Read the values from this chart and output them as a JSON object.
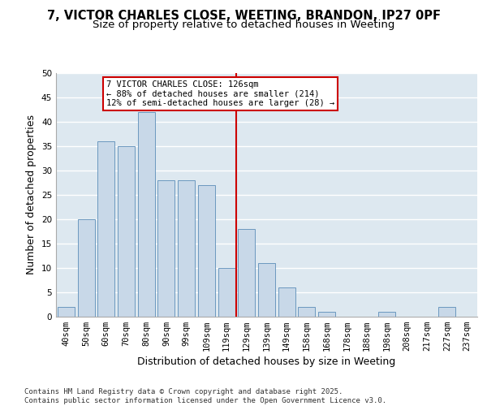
{
  "title_line1": "7, VICTOR CHARLES CLOSE, WEETING, BRANDON, IP27 0PF",
  "title_line2": "Size of property relative to detached houses in Weeting",
  "xlabel": "Distribution of detached houses by size in Weeting",
  "ylabel": "Number of detached properties",
  "categories": [
    "40sqm",
    "50sqm",
    "60sqm",
    "70sqm",
    "80sqm",
    "90sqm",
    "99sqm",
    "109sqm",
    "119sqm",
    "129sqm",
    "139sqm",
    "149sqm",
    "158sqm",
    "168sqm",
    "178sqm",
    "188sqm",
    "198sqm",
    "208sqm",
    "217sqm",
    "227sqm",
    "237sqm"
  ],
  "values": [
    2,
    20,
    36,
    35,
    42,
    28,
    28,
    27,
    10,
    18,
    11,
    6,
    2,
    1,
    0,
    0,
    1,
    0,
    0,
    2,
    0
  ],
  "bar_color": "#c8d8e8",
  "bar_edge_color": "#5b8db8",
  "vline_color": "#cc0000",
  "annotation_box_color": "#ffffff",
  "annotation_box_edge_color": "#cc0000",
  "background_color": "#dde8f0",
  "ylim": [
    0,
    50
  ],
  "yticks": [
    0,
    5,
    10,
    15,
    20,
    25,
    30,
    35,
    40,
    45,
    50
  ],
  "annotation_line1": "7 VICTOR CHARLES CLOSE: 126sqm",
  "annotation_line2": "← 88% of detached houses are smaller (214)",
  "annotation_line3": "12% of semi-detached houses are larger (28) →",
  "footer": "Contains HM Land Registry data © Crown copyright and database right 2025.\nContains public sector information licensed under the Open Government Licence v3.0.",
  "vline_index": 9,
  "title_fontsize": 10.5,
  "subtitle_fontsize": 9.5,
  "axis_label_fontsize": 9,
  "tick_fontsize": 7.5,
  "footer_fontsize": 6.5
}
